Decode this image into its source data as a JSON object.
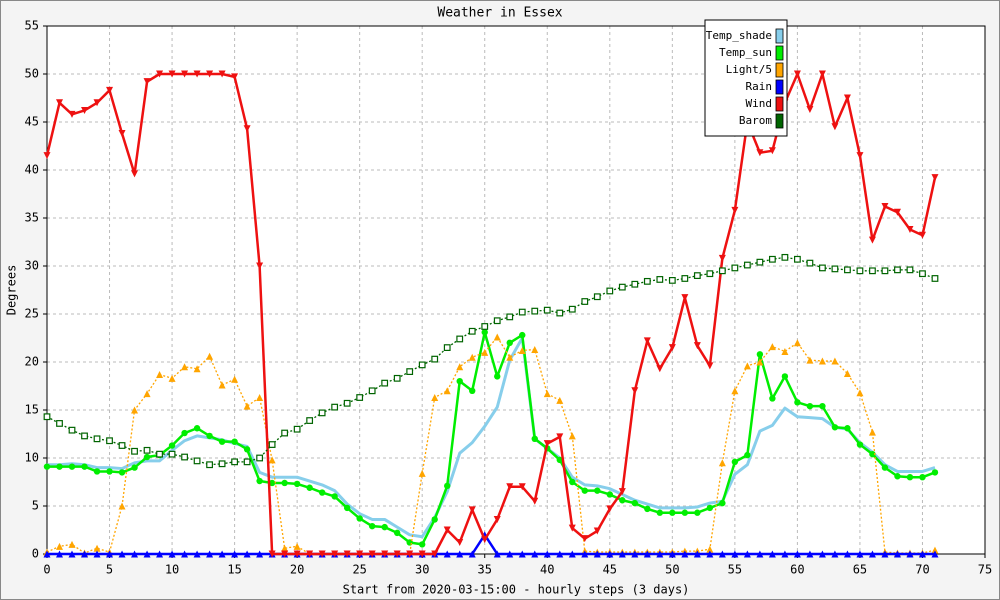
{
  "chart_data": {
    "type": "line",
    "title": "Weather in Essex",
    "xlabel": "Start from 2020-03-15:00 - hourly steps (3 days)",
    "ylabel": "Degrees",
    "xlim": [
      0,
      75
    ],
    "ylim": [
      0,
      55
    ],
    "xticks": [
      0,
      5,
      10,
      15,
      20,
      25,
      30,
      35,
      40,
      45,
      50,
      55,
      60,
      65,
      70,
      75
    ],
    "yticks": [
      0,
      5,
      10,
      15,
      20,
      25,
      30,
      35,
      40,
      45,
      50,
      55
    ],
    "grid": true,
    "legend": "upper right",
    "x": [
      0,
      1,
      2,
      3,
      4,
      5,
      6,
      7,
      8,
      9,
      10,
      11,
      12,
      13,
      14,
      15,
      16,
      17,
      18,
      19,
      20,
      21,
      22,
      23,
      24,
      25,
      26,
      27,
      28,
      29,
      30,
      31,
      32,
      33,
      34,
      35,
      36,
      37,
      38,
      39,
      40,
      41,
      42,
      43,
      44,
      45,
      46,
      47,
      48,
      49,
      50,
      51,
      52,
      53,
      54,
      55,
      56,
      57,
      58,
      59,
      60,
      61,
      62,
      63,
      64,
      65,
      66,
      67,
      68,
      69,
      70,
      71
    ],
    "series": [
      {
        "name": "Temp_shade",
        "color": "#87ceeb",
        "marker": "none",
        "dotted": false,
        "values": [
          9.3,
          9.3,
          9.4,
          9.3,
          9.0,
          9.0,
          8.9,
          9.5,
          9.7,
          9.7,
          10.8,
          11.8,
          12.3,
          12.1,
          11.9,
          11.5,
          11.2,
          8.5,
          8.0,
          8.0,
          8.0,
          7.6,
          7.2,
          6.6,
          5.2,
          4.2,
          3.6,
          3.6,
          2.8,
          2.0,
          1.8,
          3.8,
          6.5,
          10.5,
          11.6,
          13.3,
          15.3,
          20.2,
          22.5,
          12.0,
          11.0,
          10.0,
          8.0,
          7.2,
          7.1,
          6.8,
          6.2,
          5.6,
          5.2,
          4.8,
          4.8,
          4.8,
          4.9,
          5.3,
          5.5,
          8.3,
          9.3,
          12.8,
          13.4,
          15.2,
          14.3,
          14.2,
          14.1,
          13.2,
          13.0,
          11.6,
          10.6,
          9.3,
          8.6,
          8.6,
          8.6,
          9.0
        ]
      },
      {
        "name": "Temp_sun",
        "color": "#00ee00",
        "marker": "circle",
        "dotted": false,
        "values": [
          9.1,
          9.1,
          9.1,
          9.1,
          8.6,
          8.6,
          8.5,
          9.0,
          10.1,
          10.3,
          11.3,
          12.6,
          13.1,
          12.3,
          11.7,
          11.7,
          10.9,
          7.6,
          7.4,
          7.4,
          7.3,
          6.9,
          6.4,
          6.0,
          4.8,
          3.7,
          2.9,
          2.8,
          2.2,
          1.2,
          1.0,
          3.6,
          7.1,
          18.0,
          17.0,
          23.1,
          18.5,
          22.0,
          22.8,
          12.0,
          11.0,
          9.8,
          7.5,
          6.6,
          6.6,
          6.2,
          5.6,
          5.3,
          4.7,
          4.3,
          4.3,
          4.3,
          4.3,
          4.8,
          5.3,
          9.6,
          10.3,
          20.8,
          16.2,
          18.5,
          15.8,
          15.4,
          15.4,
          13.2,
          13.1,
          11.4,
          10.4,
          9.0,
          8.1,
          8.0,
          8.0,
          8.5
        ]
      },
      {
        "name": "Light/5",
        "color": "#ffa500",
        "marker": "triangle-up",
        "dotted": true,
        "values": [
          0.2,
          0.8,
          1.0,
          0.1,
          0.6,
          0.2,
          5.0,
          15.0,
          16.7,
          18.7,
          18.3,
          19.5,
          19.3,
          20.6,
          17.6,
          18.2,
          15.4,
          16.3,
          9.8,
          0.6,
          0.8,
          0,
          0,
          0,
          0,
          0,
          0,
          0,
          0,
          0,
          8.4,
          16.3,
          17.0,
          19.5,
          20.5,
          21.0,
          22.6,
          20.5,
          21.2,
          21.3,
          16.7,
          16.0,
          12.3,
          0.3,
          0.2,
          0.2,
          0.2,
          0.2,
          0.2,
          0.2,
          0.2,
          0.3,
          0.3,
          0.5,
          9.5,
          17.0,
          19.6,
          20.0,
          21.6,
          21.1,
          22.0,
          20.2,
          20.1,
          20.1,
          18.8,
          16.8,
          12.7,
          0.2,
          0.1,
          0.1,
          0.1,
          0.4
        ]
      },
      {
        "name": "Rain",
        "color": "#0000ff",
        "marker": "triangle-up",
        "dotted": false,
        "values": [
          0,
          0,
          0,
          0,
          0,
          0,
          0,
          0,
          0,
          0,
          0,
          0,
          0,
          0,
          0,
          0,
          0,
          0,
          0,
          0,
          0,
          0,
          0,
          0,
          0,
          0,
          0,
          0,
          0,
          0,
          0,
          0,
          0,
          0,
          0,
          2.0,
          0,
          0,
          0,
          0,
          0,
          0,
          0,
          0,
          0,
          0,
          0,
          0,
          0,
          0,
          0,
          0,
          0,
          0,
          0,
          0,
          0,
          0,
          0,
          0,
          0,
          0,
          0,
          0,
          0,
          0,
          0,
          0,
          0,
          0,
          0,
          0
        ]
      },
      {
        "name": "Wind",
        "color": "#ee1111",
        "marker": "triangle-down",
        "dotted": false,
        "values": [
          41.5,
          47.0,
          45.8,
          46.2,
          47.0,
          48.3,
          43.8,
          39.6,
          49.2,
          50.0,
          50.0,
          50.0,
          50.0,
          50.0,
          50.0,
          49.7,
          44.3,
          30.0,
          0,
          0,
          0,
          0,
          0,
          0,
          0,
          0,
          0,
          0,
          0,
          0,
          0,
          0,
          2.5,
          1.2,
          4.6,
          1.5,
          3.6,
          7.0,
          7.0,
          5.5,
          11.5,
          12.2,
          2.7,
          1.6,
          2.4,
          4.7,
          6.5,
          17.0,
          22.2,
          19.3,
          21.5,
          26.7,
          21.7,
          19.6,
          30.8,
          35.8,
          45.0,
          41.8,
          42.0,
          47.0,
          50.0,
          46.3,
          50.0,
          44.5,
          47.5,
          41.5,
          32.7,
          36.2,
          35.6,
          33.8,
          33.2,
          39.2
        ]
      },
      {
        "name": "Barom",
        "color": "#006400",
        "marker": "square",
        "dotted": true,
        "values": [
          14.3,
          13.6,
          12.9,
          12.3,
          12.0,
          11.8,
          11.3,
          10.7,
          10.8,
          10.4,
          10.4,
          10.1,
          9.7,
          9.3,
          9.4,
          9.6,
          9.6,
          10.0,
          11.4,
          12.6,
          13.0,
          13.9,
          14.7,
          15.3,
          15.7,
          16.3,
          17.0,
          17.8,
          18.3,
          19.0,
          19.7,
          20.3,
          21.5,
          22.4,
          23.2,
          23.7,
          24.3,
          24.7,
          25.2,
          25.3,
          25.4,
          25.1,
          25.5,
          26.3,
          26.8,
          27.4,
          27.8,
          28.1,
          28.4,
          28.6,
          28.5,
          28.7,
          29.0,
          29.2,
          29.5,
          29.8,
          30.1,
          30.4,
          30.7,
          30.9,
          30.7,
          30.3,
          29.8,
          29.7,
          29.6,
          29.5,
          29.5,
          29.5,
          29.6,
          29.6,
          29.2,
          28.7
        ]
      }
    ]
  }
}
